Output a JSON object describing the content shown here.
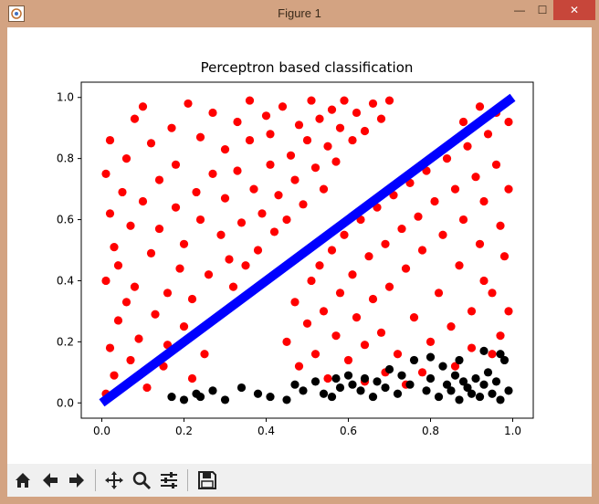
{
  "window": {
    "title": "Figure 1"
  },
  "titlebar_buttons": {
    "minimize": "—",
    "maximize": "☐",
    "close": "✕"
  },
  "toolbar": {
    "items": [
      {
        "name": "home",
        "icon": "home-icon"
      },
      {
        "name": "back",
        "icon": "arrow-left-icon"
      },
      {
        "name": "forward",
        "icon": "arrow-right-icon"
      },
      {
        "name": "pan",
        "icon": "move-icon"
      },
      {
        "name": "zoom",
        "icon": "zoom-icon"
      },
      {
        "name": "subplots",
        "icon": "sliders-icon"
      },
      {
        "name": "save",
        "icon": "save-icon"
      }
    ]
  },
  "colors": {
    "class_a": "#ff0000",
    "class_b": "#000000",
    "boundary": "#0000ff"
  },
  "chart_data": {
    "type": "scatter",
    "title": "Perceptron based classification",
    "xlabel": "",
    "ylabel": "",
    "xlim": [
      -0.05,
      1.05
    ],
    "ylim": [
      -0.05,
      1.05
    ],
    "xticks": [
      0.0,
      0.2,
      0.4,
      0.6,
      0.8,
      1.0
    ],
    "yticks": [
      0.0,
      0.2,
      0.4,
      0.6,
      0.8,
      1.0
    ],
    "xtick_labels": [
      "0.0",
      "0.2",
      "0.4",
      "0.6",
      "0.8",
      "1.0"
    ],
    "ytick_labels": [
      "0.0",
      "0.2",
      "0.4",
      "0.6",
      "0.8",
      "1.0"
    ],
    "grid": false,
    "legend": "none",
    "series": [
      {
        "color": "#ff0000",
        "points": [
          [
            0.01,
            0.03
          ],
          [
            0.02,
            0.18
          ],
          [
            0.01,
            0.4
          ],
          [
            0.02,
            0.62
          ],
          [
            0.01,
            0.75
          ],
          [
            0.02,
            0.86
          ],
          [
            0.03,
            0.51
          ],
          [
            0.04,
            0.27
          ],
          [
            0.03,
            0.09
          ],
          [
            0.05,
            0.69
          ],
          [
            0.04,
            0.45
          ],
          [
            0.06,
            0.33
          ],
          [
            0.07,
            0.58
          ],
          [
            0.06,
            0.8
          ],
          [
            0.07,
            0.14
          ],
          [
            0.08,
            0.93
          ],
          [
            0.09,
            0.21
          ],
          [
            0.08,
            0.38
          ],
          [
            0.1,
            0.66
          ],
          [
            0.11,
            0.05
          ],
          [
            0.1,
            0.97
          ],
          [
            0.12,
            0.49
          ],
          [
            0.13,
            0.29
          ],
          [
            0.12,
            0.85
          ],
          [
            0.14,
            0.73
          ],
          [
            0.15,
            0.12
          ],
          [
            0.14,
            0.57
          ],
          [
            0.16,
            0.36
          ],
          [
            0.17,
            0.9
          ],
          [
            0.16,
            0.19
          ],
          [
            0.18,
            0.64
          ],
          [
            0.19,
            0.44
          ],
          [
            0.18,
            0.78
          ],
          [
            0.2,
            0.25
          ],
          [
            0.21,
            0.98
          ],
          [
            0.2,
            0.52
          ],
          [
            0.22,
            0.08
          ],
          [
            0.23,
            0.69
          ],
          [
            0.22,
            0.34
          ],
          [
            0.24,
            0.87
          ],
          [
            0.25,
            0.16
          ],
          [
            0.24,
            0.6
          ],
          [
            0.26,
            0.42
          ],
          [
            0.27,
            0.75
          ],
          [
            0.28,
            0.28
          ],
          [
            0.27,
            0.95
          ],
          [
            0.29,
            0.55
          ],
          [
            0.3,
            0.83
          ],
          [
            0.31,
            0.47
          ],
          [
            0.3,
            0.67
          ],
          [
            0.32,
            0.38
          ],
          [
            0.33,
            0.92
          ],
          [
            0.34,
            0.59
          ],
          [
            0.33,
            0.76
          ],
          [
            0.35,
            0.45
          ],
          [
            0.36,
            0.99
          ],
          [
            0.37,
            0.7
          ],
          [
            0.36,
            0.86
          ],
          [
            0.38,
            0.5
          ],
          [
            0.39,
            0.62
          ],
          [
            0.4,
            0.94
          ],
          [
            0.41,
            0.78
          ],
          [
            0.42,
            0.56
          ],
          [
            0.41,
            0.88
          ],
          [
            0.43,
            0.68
          ],
          [
            0.44,
            0.97
          ],
          [
            0.45,
            0.6
          ],
          [
            0.46,
            0.81
          ],
          [
            0.47,
            0.73
          ],
          [
            0.48,
            0.91
          ],
          [
            0.49,
            0.65
          ],
          [
            0.5,
            0.86
          ],
          [
            0.51,
            0.99
          ],
          [
            0.52,
            0.77
          ],
          [
            0.53,
            0.93
          ],
          [
            0.54,
            0.7
          ],
          [
            0.55,
            0.84
          ],
          [
            0.56,
            0.96
          ],
          [
            0.57,
            0.79
          ],
          [
            0.58,
            0.9
          ],
          [
            0.59,
            0.99
          ],
          [
            0.61,
            0.86
          ],
          [
            0.62,
            0.95
          ],
          [
            0.64,
            0.89
          ],
          [
            0.66,
            0.98
          ],
          [
            0.68,
            0.93
          ],
          [
            0.7,
            0.99
          ],
          [
            0.45,
            0.2
          ],
          [
            0.47,
            0.33
          ],
          [
            0.48,
            0.12
          ],
          [
            0.5,
            0.26
          ],
          [
            0.51,
            0.4
          ],
          [
            0.52,
            0.16
          ],
          [
            0.53,
            0.45
          ],
          [
            0.54,
            0.3
          ],
          [
            0.55,
            0.08
          ],
          [
            0.56,
            0.5
          ],
          [
            0.57,
            0.22
          ],
          [
            0.58,
            0.36
          ],
          [
            0.59,
            0.55
          ],
          [
            0.6,
            0.14
          ],
          [
            0.61,
            0.42
          ],
          [
            0.62,
            0.28
          ],
          [
            0.63,
            0.6
          ],
          [
            0.64,
            0.19
          ],
          [
            0.65,
            0.48
          ],
          [
            0.66,
            0.34
          ],
          [
            0.67,
            0.64
          ],
          [
            0.68,
            0.23
          ],
          [
            0.69,
            0.52
          ],
          [
            0.7,
            0.38
          ],
          [
            0.71,
            0.68
          ],
          [
            0.72,
            0.16
          ],
          [
            0.73,
            0.57
          ],
          [
            0.74,
            0.44
          ],
          [
            0.75,
            0.72
          ],
          [
            0.76,
            0.28
          ],
          [
            0.77,
            0.61
          ],
          [
            0.78,
            0.5
          ],
          [
            0.79,
            0.76
          ],
          [
            0.8,
            0.2
          ],
          [
            0.81,
            0.66
          ],
          [
            0.82,
            0.36
          ],
          [
            0.83,
            0.55
          ],
          [
            0.84,
            0.8
          ],
          [
            0.85,
            0.25
          ],
          [
            0.86,
            0.7
          ],
          [
            0.87,
            0.45
          ],
          [
            0.88,
            0.6
          ],
          [
            0.89,
            0.84
          ],
          [
            0.9,
            0.3
          ],
          [
            0.91,
            0.74
          ],
          [
            0.92,
            0.52
          ],
          [
            0.93,
            0.66
          ],
          [
            0.94,
            0.88
          ],
          [
            0.95,
            0.36
          ],
          [
            0.96,
            0.78
          ],
          [
            0.97,
            0.58
          ],
          [
            0.98,
            0.48
          ],
          [
            0.99,
            0.92
          ],
          [
            0.97,
            0.22
          ],
          [
            0.95,
            0.16
          ],
          [
            0.99,
            0.7
          ],
          [
            0.88,
            0.92
          ],
          [
            0.92,
            0.97
          ],
          [
            0.96,
            0.95
          ],
          [
            0.93,
            0.4
          ],
          [
            0.86,
            0.12
          ],
          [
            0.78,
            0.1
          ],
          [
            0.74,
            0.06
          ],
          [
            0.9,
            0.18
          ],
          [
            0.99,
            0.3
          ],
          [
            0.64,
            0.07
          ],
          [
            0.69,
            0.1
          ]
        ]
      },
      {
        "color": "#000000",
        "points": [
          [
            0.17,
            0.02
          ],
          [
            0.2,
            0.01
          ],
          [
            0.23,
            0.03
          ],
          [
            0.24,
            0.02
          ],
          [
            0.27,
            0.04
          ],
          [
            0.3,
            0.01
          ],
          [
            0.34,
            0.05
          ],
          [
            0.38,
            0.03
          ],
          [
            0.41,
            0.02
          ],
          [
            0.45,
            0.01
          ],
          [
            0.47,
            0.06
          ],
          [
            0.49,
            0.04
          ],
          [
            0.52,
            0.07
          ],
          [
            0.54,
            0.03
          ],
          [
            0.56,
            0.02
          ],
          [
            0.57,
            0.08
          ],
          [
            0.58,
            0.05
          ],
          [
            0.6,
            0.09
          ],
          [
            0.61,
            0.06
          ],
          [
            0.63,
            0.04
          ],
          [
            0.64,
            0.08
          ],
          [
            0.66,
            0.02
          ],
          [
            0.67,
            0.07
          ],
          [
            0.69,
            0.05
          ],
          [
            0.7,
            0.11
          ],
          [
            0.72,
            0.03
          ],
          [
            0.73,
            0.09
          ],
          [
            0.75,
            0.06
          ],
          [
            0.76,
            0.14
          ],
          [
            0.79,
            0.04
          ],
          [
            0.8,
            0.08
          ],
          [
            0.82,
            0.02
          ],
          [
            0.83,
            0.12
          ],
          [
            0.84,
            0.06
          ],
          [
            0.85,
            0.04
          ],
          [
            0.86,
            0.09
          ],
          [
            0.87,
            0.01
          ],
          [
            0.88,
            0.07
          ],
          [
            0.89,
            0.05
          ],
          [
            0.9,
            0.03
          ],
          [
            0.91,
            0.08
          ],
          [
            0.92,
            0.02
          ],
          [
            0.93,
            0.06
          ],
          [
            0.94,
            0.1
          ],
          [
            0.95,
            0.03
          ],
          [
            0.96,
            0.07
          ],
          [
            0.97,
            0.01
          ],
          [
            0.98,
            0.14
          ],
          [
            0.99,
            0.04
          ],
          [
            0.97,
            0.16
          ],
          [
            0.93,
            0.17
          ],
          [
            0.87,
            0.14
          ],
          [
            0.8,
            0.15
          ]
        ]
      }
    ],
    "boundary_line": {
      "color": "#0000ff",
      "x": [
        0.0,
        1.0
      ],
      "y": [
        0.0,
        1.0
      ]
    }
  }
}
